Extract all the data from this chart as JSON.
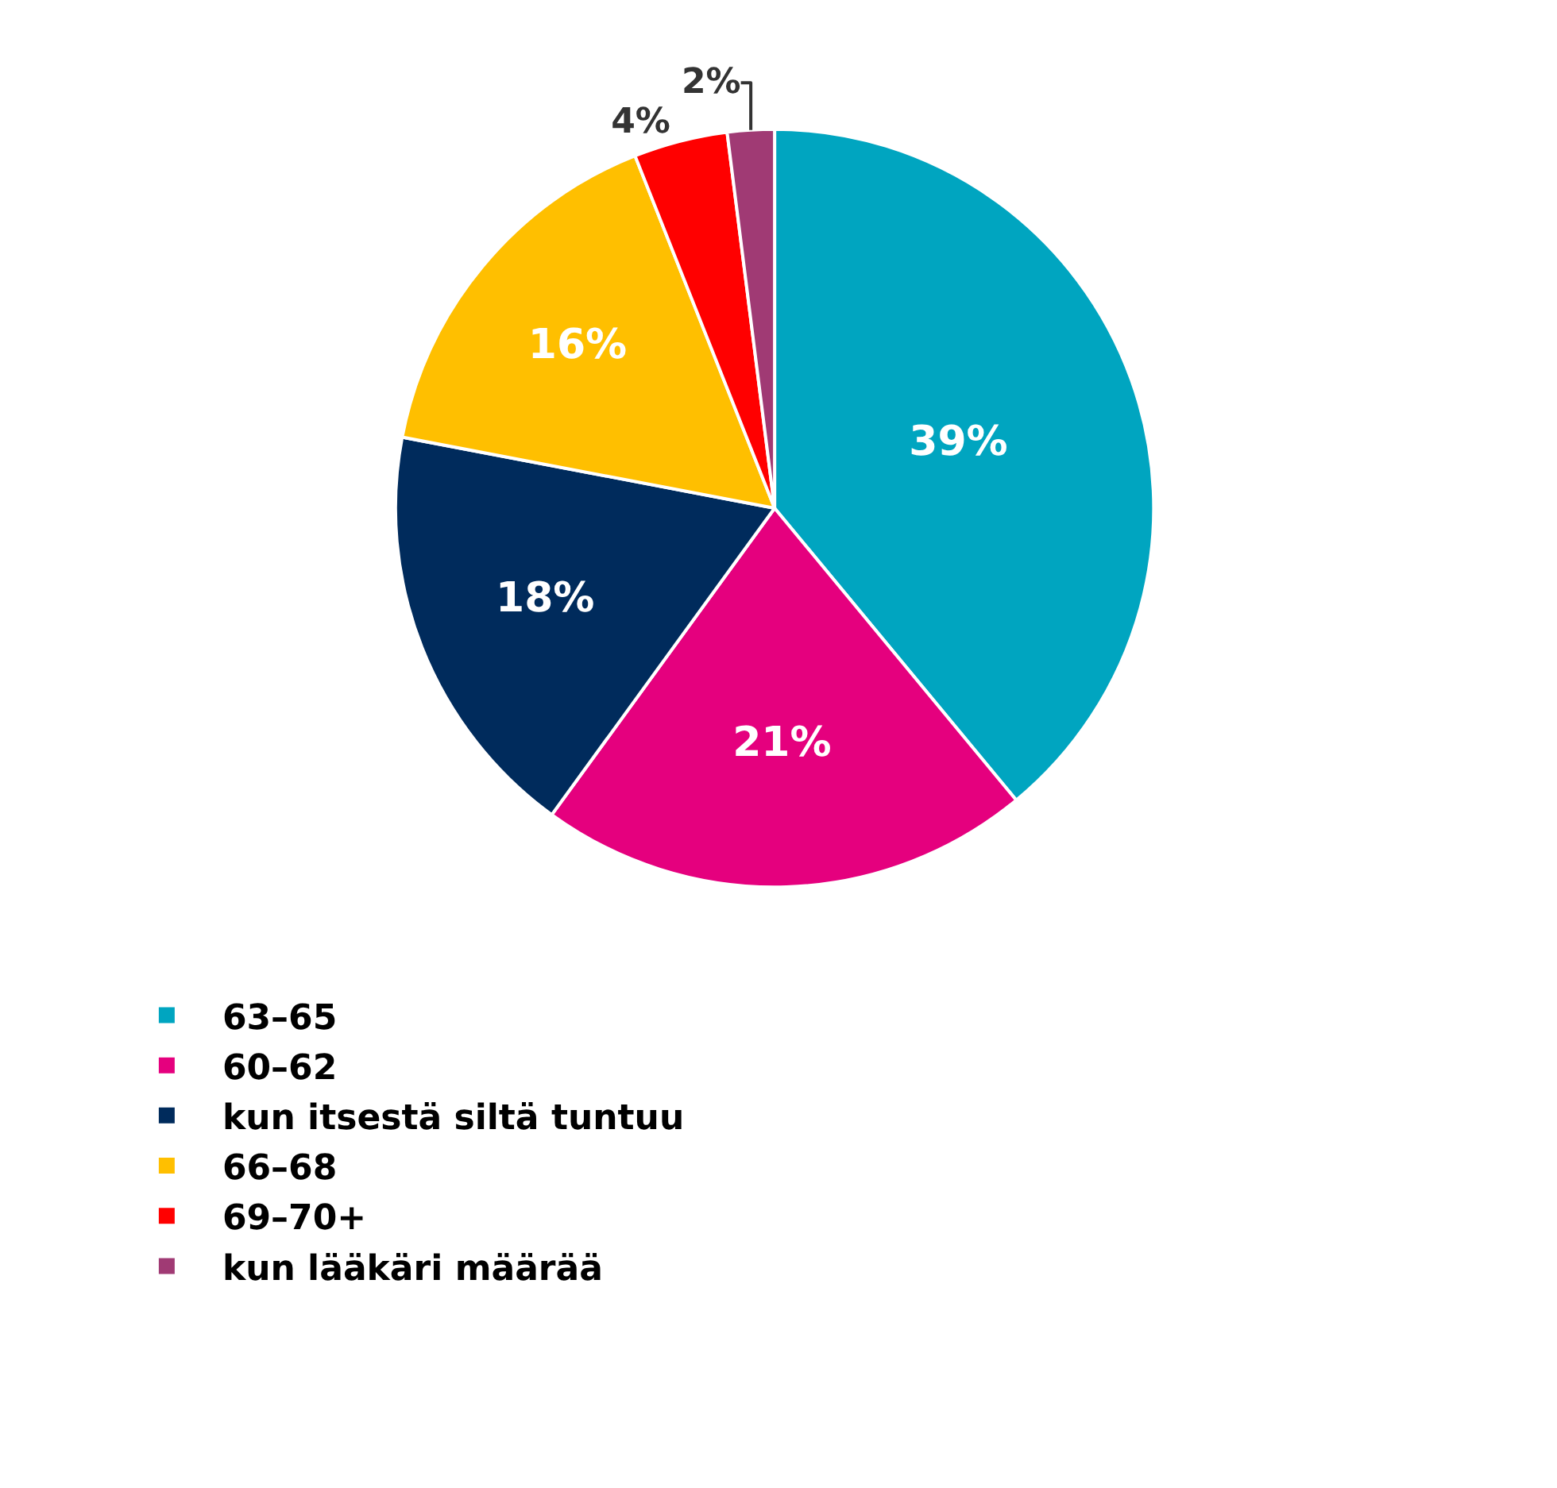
{
  "chart_data": {
    "type": "pie",
    "categories": [
      "63–65",
      "60–62",
      "kun itsestä siltä tuntuu",
      "66–68",
      "69–70+",
      "kun lääkäri määrää"
    ],
    "values": [
      39,
      21,
      18,
      16,
      4,
      2
    ],
    "value_labels": [
      "39%",
      "21%",
      "18%",
      "16%",
      "4%",
      "2%"
    ],
    "colors": [
      "#00a5c0",
      "#e5007e",
      "#002b5c",
      "#ffbf00",
      "#ff0000",
      "#a03a74"
    ],
    "legend": "bottom"
  }
}
